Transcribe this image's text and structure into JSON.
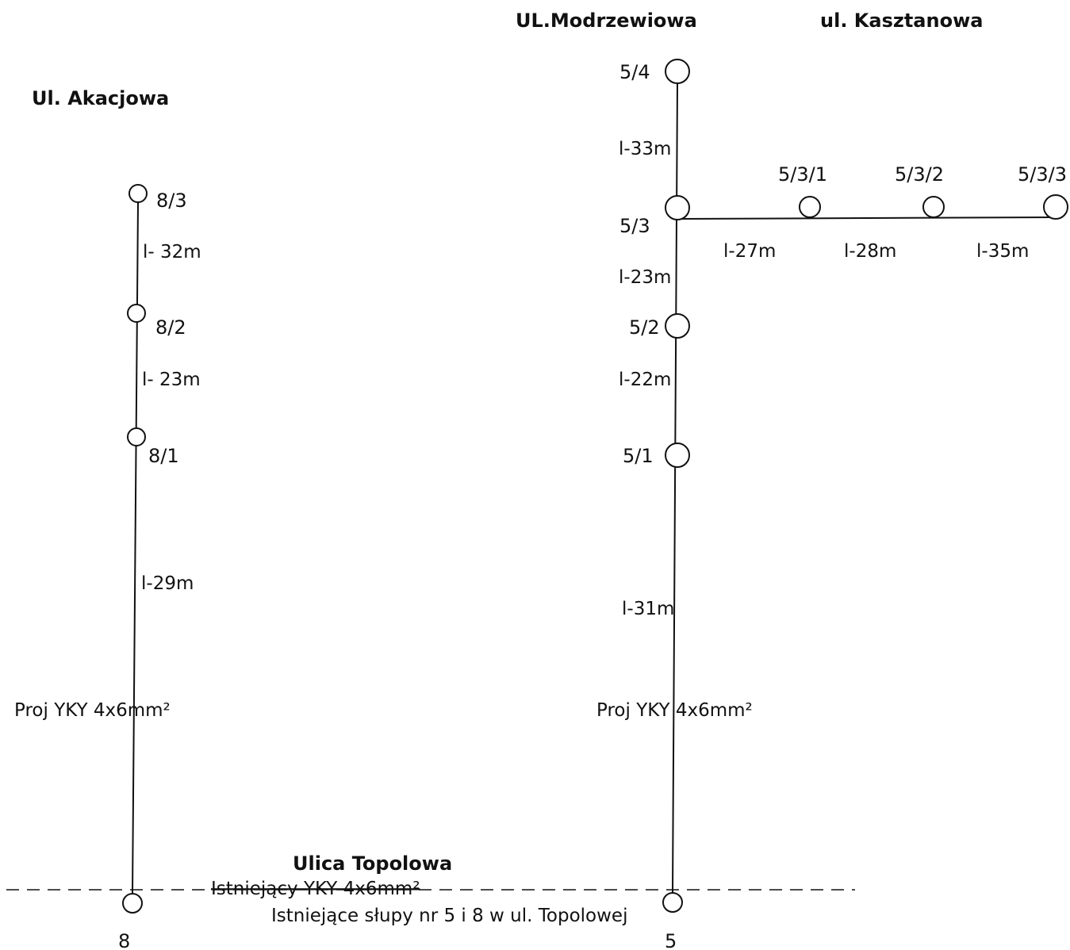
{
  "streets": {
    "akacjowa": "Ul. Akacjowa",
    "modrzewiowa": "UL.Modrzewiowa",
    "kasztanowa": "ul. Kasztanowa",
    "topolowa": "Ulica Topolowa"
  },
  "poles": {
    "p8_3": "8/3",
    "p8_2": "8/2",
    "p8_1": "8/1",
    "p8": "8",
    "p5_4": "5/4",
    "p5_3": "5/3",
    "p5_3_1": "5/3/1",
    "p5_3_2": "5/3/2",
    "p5_3_3": "5/3/3",
    "p5_2": "5/2",
    "p5_1": "5/1",
    "p5": "5"
  },
  "lengths": {
    "l8_3_8_2": "l- 32m",
    "l8_2_8_1": "l- 23m",
    "l8_1_8": "l-29m",
    "l5_4_5_3": "l-33m",
    "l5_3_5_3_1": "l-27m",
    "l5_3_1_5_3_2": "l-28m",
    "l5_3_2_5_3_3": "l-35m",
    "l5_3_5_2": "l-23m",
    "l5_2_5_1": "l-22m",
    "l5_1_5": "l-31m"
  },
  "cables": {
    "left_projected": "Proj YKY 4x6mm²",
    "right_projected": "Proj YKY 4x6mm²",
    "existing": "Istniejący YKY 4x6mm²"
  },
  "notes": {
    "existing_poles": "Istniejące słupy nr 5 i 8 w ul. Topolowej"
  }
}
